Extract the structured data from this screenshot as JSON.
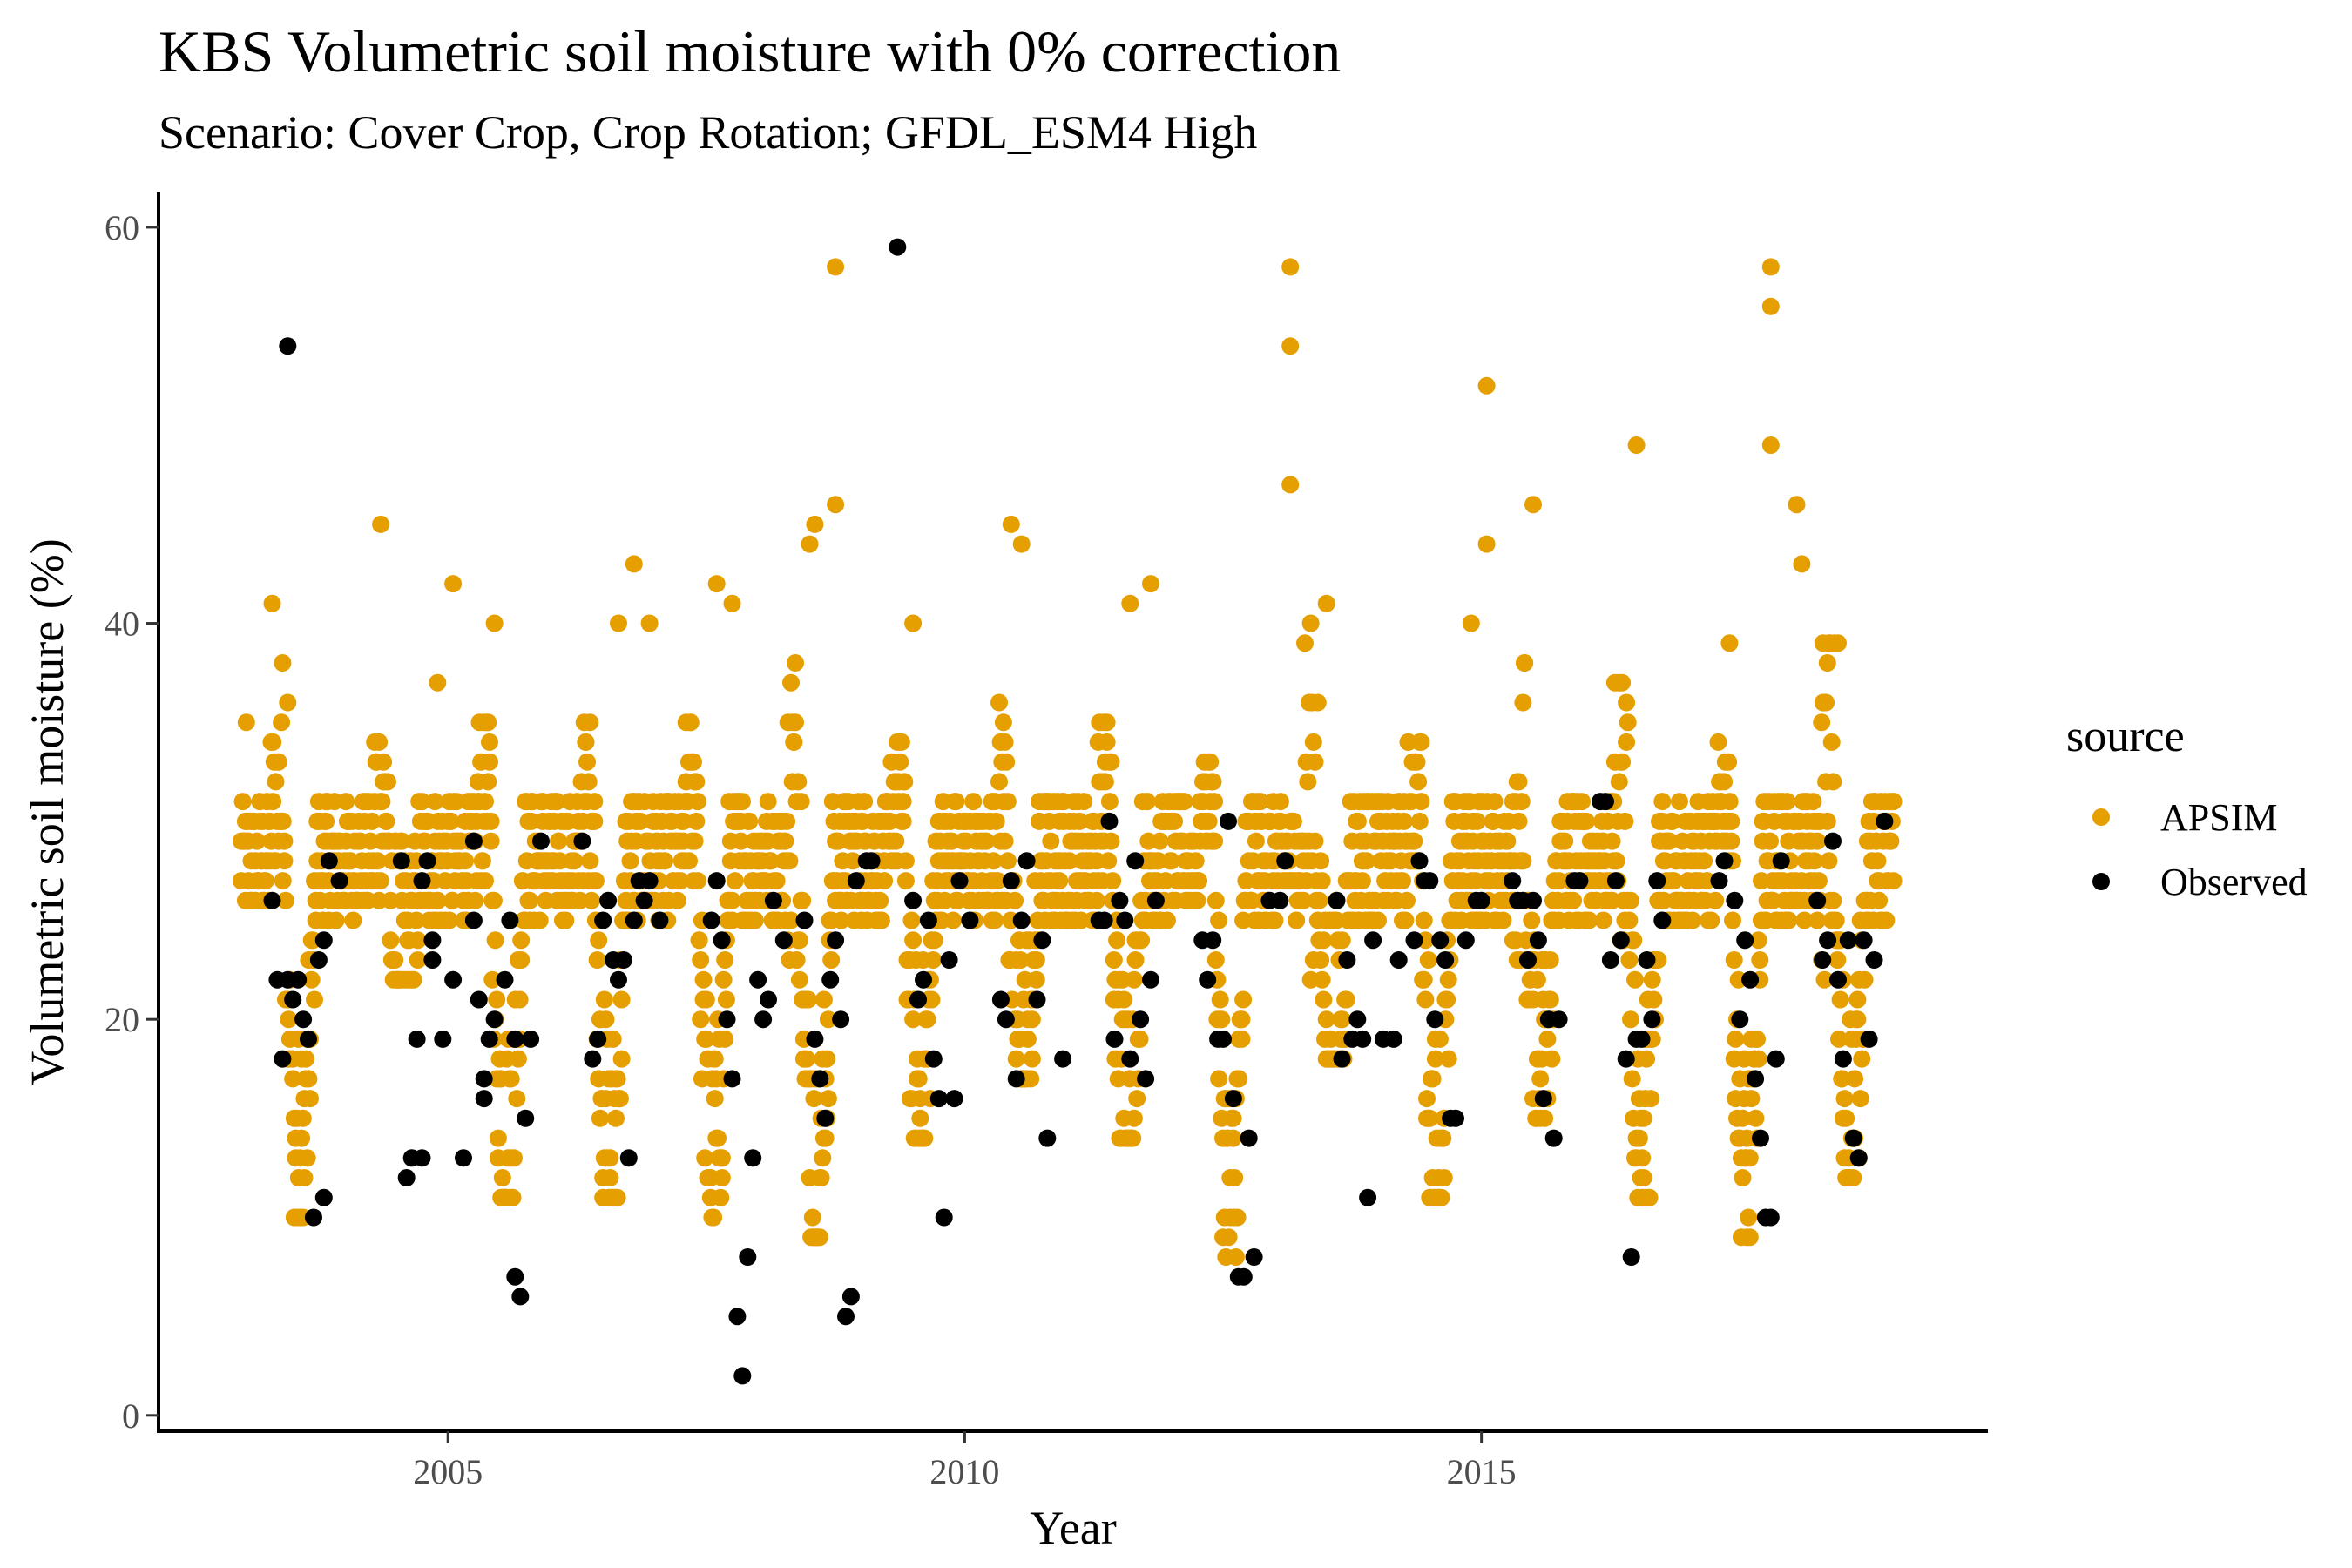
{
  "chart_data": {
    "type": "scatter",
    "title": "KBS Volumetric soil moisture with 0% correction",
    "subtitle": "Scenario: Cover Crop, Crop Rotation; GFDL_ESM4 High",
    "xlabel": "Year",
    "ylabel": "Volumetric soil moisture (%)",
    "xlim": [
      2002.2,
      2019.9
    ],
    "ylim": [
      -0.8,
      61.8
    ],
    "x_ticks": [
      2005,
      2010,
      2015
    ],
    "y_ticks": [
      0,
      20,
      40,
      60
    ],
    "grid": false,
    "legend": {
      "title": "source",
      "placement": "right"
    },
    "series": [
      {
        "name": "APSIM",
        "color": "#E69F00",
        "note_generated": false,
        "annual_cycle": {
          "years": [
            2003,
            2004,
            2005,
            2006,
            2007,
            2008,
            2009,
            2010,
            2011,
            2012,
            2013,
            2014,
            2015,
            2016,
            2017,
            2018
          ],
          "summer_min": [
            10,
            22,
            11,
            11,
            10,
            9,
            14,
            17,
            14,
            8,
            18,
            11,
            15,
            11,
            9,
            12
          ],
          "spring_max": [
            41,
            45,
            42,
            43,
            42,
            58,
            40,
            45,
            42,
            36,
            58,
            40,
            52,
            49,
            39,
            58
          ]
        },
        "points": [
          [
            2003.05,
            35
          ],
          [
            2003.3,
            41
          ],
          [
            2003.4,
            38
          ],
          [
            2003.45,
            36
          ],
          [
            2004.35,
            45
          ],
          [
            2004.9,
            37
          ],
          [
            2005.05,
            42
          ],
          [
            2005.45,
            40
          ],
          [
            2006.65,
            40
          ],
          [
            2006.8,
            43
          ],
          [
            2006.95,
            40
          ],
          [
            2007.6,
            42
          ],
          [
            2007.75,
            41
          ],
          [
            2008.5,
            44
          ],
          [
            2008.55,
            45
          ],
          [
            2008.75,
            58
          ],
          [
            2008.75,
            46
          ],
          [
            2009.5,
            40
          ],
          [
            2010.45,
            45
          ],
          [
            2010.55,
            44
          ],
          [
            2011.6,
            41
          ],
          [
            2011.8,
            42
          ],
          [
            2013.15,
            58
          ],
          [
            2013.15,
            54
          ],
          [
            2013.15,
            47
          ],
          [
            2013.5,
            41
          ],
          [
            2014.9,
            40
          ],
          [
            2015.05,
            52
          ],
          [
            2015.05,
            44
          ],
          [
            2015.5,
            46
          ],
          [
            2016.5,
            49
          ],
          [
            2017.4,
            39
          ],
          [
            2017.8,
            58
          ],
          [
            2017.8,
            56
          ],
          [
            2017.8,
            49
          ],
          [
            2018.05,
            46
          ],
          [
            2018.1,
            43
          ],
          [
            2018.45,
            39
          ]
        ]
      },
      {
        "name": "Observed",
        "color": "#000000",
        "points": [
          [
            2003.3,
            26
          ],
          [
            2003.35,
            22
          ],
          [
            2003.4,
            18
          ],
          [
            2003.45,
            54
          ],
          [
            2003.45,
            22
          ],
          [
            2003.5,
            21
          ],
          [
            2003.55,
            22
          ],
          [
            2003.6,
            20
          ],
          [
            2003.65,
            19
          ],
          [
            2003.7,
            10
          ],
          [
            2003.75,
            23
          ],
          [
            2003.8,
            11
          ],
          [
            2003.8,
            24
          ],
          [
            2003.85,
            28
          ],
          [
            2003.95,
            27
          ],
          [
            2004.55,
            28
          ],
          [
            2004.75,
            27
          ],
          [
            2004.8,
            28
          ],
          [
            2004.85,
            24
          ],
          [
            2004.7,
            19
          ],
          [
            2004.6,
            12
          ],
          [
            2004.65,
            13
          ],
          [
            2004.75,
            13
          ],
          [
            2004.85,
            23
          ],
          [
            2004.95,
            19
          ],
          [
            2005.15,
            13
          ],
          [
            2005.05,
            22
          ],
          [
            2005.25,
            25
          ],
          [
            2005.25,
            29
          ],
          [
            2005.3,
            21
          ],
          [
            2005.35,
            17
          ],
          [
            2005.35,
            16
          ],
          [
            2005.4,
            19
          ],
          [
            2005.45,
            20
          ],
          [
            2005.55,
            22
          ],
          [
            2005.6,
            25
          ],
          [
            2005.65,
            19
          ],
          [
            2005.65,
            7
          ],
          [
            2005.7,
            6
          ],
          [
            2005.75,
            15
          ],
          [
            2005.8,
            19
          ],
          [
            2005.9,
            29
          ],
          [
            2006.3,
            29
          ],
          [
            2006.4,
            18
          ],
          [
            2006.45,
            19
          ],
          [
            2006.5,
            25
          ],
          [
            2006.55,
            26
          ],
          [
            2006.6,
            23
          ],
          [
            2006.65,
            22
          ],
          [
            2006.7,
            23
          ],
          [
            2006.75,
            13
          ],
          [
            2006.8,
            25
          ],
          [
            2006.85,
            27
          ],
          [
            2006.9,
            26
          ],
          [
            2006.95,
            27
          ],
          [
            2007.05,
            25
          ],
          [
            2007.55,
            25
          ],
          [
            2007.6,
            27
          ],
          [
            2007.65,
            24
          ],
          [
            2007.7,
            20
          ],
          [
            2007.75,
            17
          ],
          [
            2007.8,
            5
          ],
          [
            2007.85,
            2
          ],
          [
            2007.9,
            8
          ],
          [
            2007.95,
            13
          ],
          [
            2008.0,
            22
          ],
          [
            2008.05,
            20
          ],
          [
            2008.1,
            21
          ],
          [
            2008.15,
            26
          ],
          [
            2008.25,
            24
          ],
          [
            2008.45,
            25
          ],
          [
            2008.55,
            19
          ],
          [
            2008.6,
            17
          ],
          [
            2008.65,
            15
          ],
          [
            2008.7,
            22
          ],
          [
            2008.75,
            24
          ],
          [
            2008.8,
            20
          ],
          [
            2008.85,
            5
          ],
          [
            2008.9,
            6
          ],
          [
            2008.95,
            27
          ],
          [
            2009.05,
            28
          ],
          [
            2009.1,
            28
          ],
          [
            2009.35,
            59
          ],
          [
            2009.5,
            26
          ],
          [
            2009.55,
            21
          ],
          [
            2009.6,
            22
          ],
          [
            2009.65,
            25
          ],
          [
            2009.7,
            18
          ],
          [
            2009.75,
            16
          ],
          [
            2009.8,
            10
          ],
          [
            2009.85,
            23
          ],
          [
            2009.9,
            16
          ],
          [
            2009.95,
            27
          ],
          [
            2010.05,
            25
          ],
          [
            2010.35,
            21
          ],
          [
            2010.4,
            20
          ],
          [
            2010.45,
            27
          ],
          [
            2010.5,
            17
          ],
          [
            2010.55,
            25
          ],
          [
            2010.6,
            28
          ],
          [
            2010.7,
            21
          ],
          [
            2010.75,
            24
          ],
          [
            2010.8,
            14
          ],
          [
            2010.95,
            18
          ],
          [
            2011.3,
            25
          ],
          [
            2011.35,
            25
          ],
          [
            2011.4,
            30
          ],
          [
            2011.45,
            19
          ],
          [
            2011.5,
            26
          ],
          [
            2011.55,
            25
          ],
          [
            2011.6,
            18
          ],
          [
            2011.65,
            28
          ],
          [
            2011.7,
            20
          ],
          [
            2011.75,
            17
          ],
          [
            2011.8,
            22
          ],
          [
            2011.85,
            26
          ],
          [
            2012.3,
            24
          ],
          [
            2012.35,
            22
          ],
          [
            2012.4,
            24
          ],
          [
            2012.45,
            19
          ],
          [
            2012.5,
            19
          ],
          [
            2012.55,
            30
          ],
          [
            2012.6,
            16
          ],
          [
            2012.65,
            7
          ],
          [
            2012.7,
            7
          ],
          [
            2012.75,
            14
          ],
          [
            2012.8,
            8
          ],
          [
            2012.95,
            26
          ],
          [
            2013.05,
            26
          ],
          [
            2013.1,
            28
          ],
          [
            2013.6,
            26
          ],
          [
            2013.65,
            18
          ],
          [
            2013.7,
            23
          ],
          [
            2013.75,
            19
          ],
          [
            2013.8,
            20
          ],
          [
            2013.85,
            19
          ],
          [
            2013.9,
            11
          ],
          [
            2013.95,
            24
          ],
          [
            2014.05,
            19
          ],
          [
            2014.15,
            19
          ],
          [
            2014.2,
            23
          ],
          [
            2014.35,
            24
          ],
          [
            2014.4,
            28
          ],
          [
            2014.45,
            27
          ],
          [
            2014.5,
            27
          ],
          [
            2014.55,
            20
          ],
          [
            2014.6,
            24
          ],
          [
            2014.65,
            23
          ],
          [
            2014.7,
            15
          ],
          [
            2014.75,
            15
          ],
          [
            2014.85,
            24
          ],
          [
            2014.95,
            26
          ],
          [
            2015.0,
            26
          ],
          [
            2015.3,
            27
          ],
          [
            2015.35,
            26
          ],
          [
            2015.4,
            26
          ],
          [
            2015.45,
            23
          ],
          [
            2015.5,
            26
          ],
          [
            2015.55,
            24
          ],
          [
            2015.6,
            16
          ],
          [
            2015.65,
            20
          ],
          [
            2015.7,
            14
          ],
          [
            2015.75,
            20
          ],
          [
            2015.9,
            27
          ],
          [
            2015.95,
            27
          ],
          [
            2016.15,
            31
          ],
          [
            2016.2,
            31
          ],
          [
            2016.25,
            23
          ],
          [
            2016.3,
            27
          ],
          [
            2016.35,
            24
          ],
          [
            2016.4,
            18
          ],
          [
            2016.45,
            8
          ],
          [
            2016.5,
            19
          ],
          [
            2016.55,
            19
          ],
          [
            2016.6,
            23
          ],
          [
            2016.65,
            20
          ],
          [
            2016.7,
            27
          ],
          [
            2016.75,
            25
          ],
          [
            2017.3,
            27
          ],
          [
            2017.35,
            28
          ],
          [
            2017.45,
            26
          ],
          [
            2017.5,
            20
          ],
          [
            2017.55,
            24
          ],
          [
            2017.6,
            22
          ],
          [
            2017.65,
            17
          ],
          [
            2017.7,
            14
          ],
          [
            2017.75,
            10
          ],
          [
            2017.8,
            10
          ],
          [
            2017.85,
            18
          ],
          [
            2017.9,
            28
          ],
          [
            2018.25,
            26
          ],
          [
            2018.3,
            23
          ],
          [
            2018.35,
            24
          ],
          [
            2018.4,
            29
          ],
          [
            2018.45,
            22
          ],
          [
            2018.5,
            18
          ],
          [
            2018.55,
            24
          ],
          [
            2018.6,
            14
          ],
          [
            2018.65,
            13
          ],
          [
            2018.7,
            24
          ],
          [
            2018.75,
            19
          ],
          [
            2018.8,
            23
          ],
          [
            2018.9,
            30
          ]
        ]
      }
    ]
  }
}
